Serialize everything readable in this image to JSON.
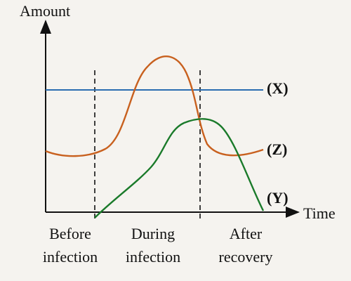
{
  "axes": {
    "y_label": "Amount",
    "x_label": "Time"
  },
  "curves": [
    {
      "label": "(X)"
    },
    {
      "label": "(Z)"
    },
    {
      "label": "(Y)"
    }
  ],
  "phases": [
    {
      "lines": [
        "Before",
        "infection"
      ]
    },
    {
      "lines": [
        "During",
        "infection"
      ]
    },
    {
      "lines": [
        "After",
        "recovery"
      ]
    }
  ]
}
